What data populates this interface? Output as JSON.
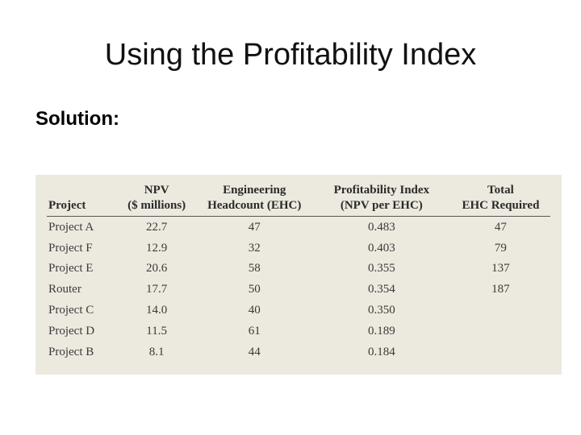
{
  "slide": {
    "title": "Using the Profitability Index",
    "subheading": "Solution:"
  },
  "table": {
    "headers": {
      "project": [
        "",
        "Project"
      ],
      "npv": [
        "NPV",
        "($ millions)"
      ],
      "ehc": [
        "Engineering",
        "Headcount (EHC)"
      ],
      "pi": [
        "Profitability Index",
        "(NPV per EHC)"
      ],
      "total": [
        "Total",
        "EHC Required"
      ]
    },
    "rows": [
      {
        "project": "Project A",
        "npv": "22.7",
        "ehc": "47",
        "pi": "0.483",
        "total": "47"
      },
      {
        "project": "Project F",
        "npv": "12.9",
        "ehc": "32",
        "pi": "0.403",
        "total": "79"
      },
      {
        "project": "Project E",
        "npv": "20.6",
        "ehc": "58",
        "pi": "0.355",
        "total": "137"
      },
      {
        "project": "Router",
        "npv": "17.7",
        "ehc": "50",
        "pi": "0.354",
        "total": "187"
      },
      {
        "project": "Project C",
        "npv": "14.0",
        "ehc": "40",
        "pi": "0.350",
        "total": ""
      },
      {
        "project": "Project D",
        "npv": "11.5",
        "ehc": "61",
        "pi": "0.189",
        "total": ""
      },
      {
        "project": "Project B",
        "npv": "8.1",
        "ehc": "44",
        "pi": "0.184",
        "total": ""
      }
    ]
  },
  "colors": {
    "panel_background": "#ece9df",
    "table_text": "#3a3a3a",
    "header_rule": "#555555"
  }
}
